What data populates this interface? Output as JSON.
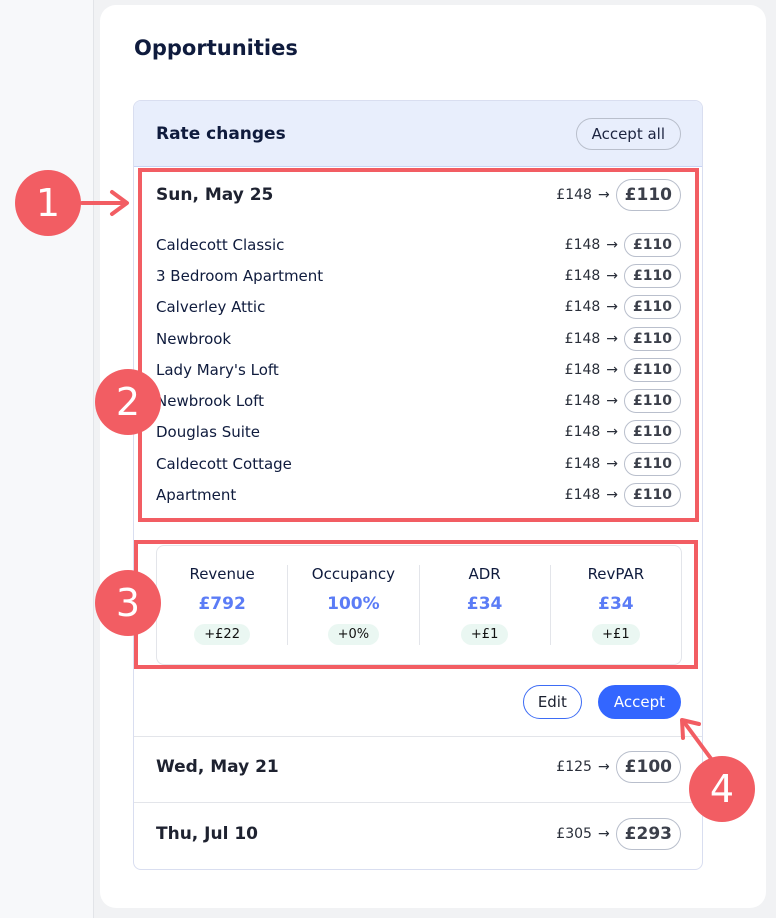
{
  "title": "Opportunities",
  "rate_changes": {
    "header": "Rate changes",
    "accept_all": "Accept all",
    "expanded_day": {
      "date": "Sun, May 25",
      "old": "£148",
      "new": "£110",
      "items": [
        {
          "name": "Caldecott Classic",
          "old": "£148",
          "new": "£110"
        },
        {
          "name": "3 Bedroom Apartment",
          "old": "£148",
          "new": "£110"
        },
        {
          "name": "Calverley Attic",
          "old": "£148",
          "new": "£110"
        },
        {
          "name": "Newbrook",
          "old": "£148",
          "new": "£110"
        },
        {
          "name": "Lady Mary's Loft",
          "old": "£148",
          "new": "£110"
        },
        {
          "name": "Newbrook Loft",
          "old": "£148",
          "new": "£110"
        },
        {
          "name": "Douglas Suite",
          "old": "£148",
          "new": "£110"
        },
        {
          "name": "Caldecott Cottage",
          "old": "£148",
          "new": "£110"
        },
        {
          "name": "Apartment",
          "old": "£148",
          "new": "£110"
        }
      ],
      "metrics": [
        {
          "label": "Revenue",
          "value": "£792",
          "delta": "+£22"
        },
        {
          "label": "Occupancy",
          "value": "100%",
          "delta": "+0%"
        },
        {
          "label": "ADR",
          "value": "£34",
          "delta": "+£1"
        },
        {
          "label": "RevPAR",
          "value": "£34",
          "delta": "+£1"
        }
      ],
      "edit": "Edit",
      "accept": "Accept"
    },
    "other_days": [
      {
        "date": "Wed, May 21",
        "old": "£125",
        "new": "£100"
      },
      {
        "date": "Thu, Jul 10",
        "old": "£305",
        "new": "£293"
      }
    ]
  },
  "arrow_glyph": "→",
  "annotations": [
    "1",
    "2",
    "3",
    "4"
  ],
  "colors": {
    "accent": "#3366ff",
    "annotation": "#f25d63",
    "metric_value": "#5b7cf6",
    "header_bg": "#e8eefc"
  }
}
